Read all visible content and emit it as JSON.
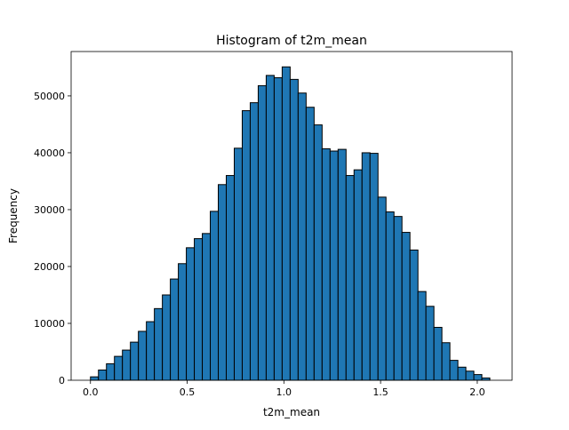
{
  "chart_data": {
    "type": "bar",
    "title": "Histogram of t2m_mean",
    "xlabel": "t2m_mean",
    "ylabel": "Frequency",
    "xlim": [
      -0.1,
      2.18
    ],
    "ylim": [
      0,
      57800
    ],
    "xticks": [
      0.0,
      0.5,
      1.0,
      1.5,
      2.0
    ],
    "xtick_labels": [
      "0.0",
      "0.5",
      "1.0",
      "1.5",
      "2.0"
    ],
    "yticks": [
      0,
      10000,
      20000,
      30000,
      40000,
      50000
    ],
    "ytick_labels": [
      "0",
      "10000",
      "20000",
      "30000",
      "40000",
      "50000"
    ],
    "grid": false,
    "bar_color": "#1f77b4",
    "edge_color": "#000000",
    "bin_start": 0.0,
    "bin_width": 0.0413,
    "values": [
      600,
      1800,
      2900,
      4200,
      5300,
      6700,
      8600,
      10300,
      12600,
      15000,
      17800,
      20500,
      23300,
      24900,
      25800,
      29700,
      34400,
      36000,
      40800,
      47400,
      48800,
      51800,
      53600,
      53200,
      55100,
      52900,
      50500,
      48000,
      44900,
      40700,
      40300,
      40600,
      36000,
      37000,
      40000,
      39900,
      32200,
      29600,
      28800,
      26000,
      22900,
      15600,
      13000,
      9300,
      6600,
      3500,
      2300,
      1600,
      1000,
      400
    ]
  }
}
